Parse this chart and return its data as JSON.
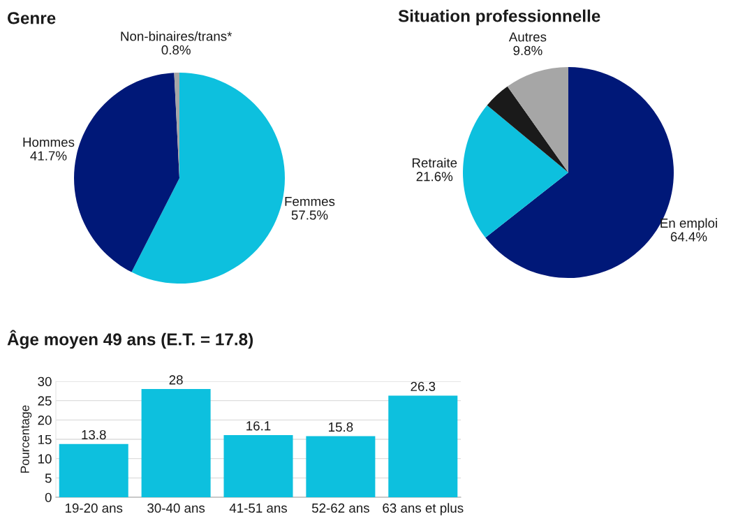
{
  "chart_data": [
    {
      "type": "pie",
      "title": "Genre",
      "categories": [
        "Femmes",
        "Hommes",
        "Non-binaires/trans*"
      ],
      "values": [
        57.5,
        41.7,
        0.8
      ],
      "colors": [
        "#0dc0de",
        "#001878",
        "#a6a6a6"
      ],
      "value_labels": [
        "57.5%",
        "41.7%",
        "0.8%"
      ]
    },
    {
      "type": "pie",
      "title": "Situation professionnelle",
      "categories": [
        "En emploi",
        "Retraite",
        null,
        "Autres"
      ],
      "values": [
        64.4,
        21.6,
        4.2,
        9.8
      ],
      "colors": [
        "#001878",
        "#0dc0de",
        "#1a1a1a",
        "#a6a6a6"
      ],
      "value_labels": [
        "64.4%",
        "21.6%",
        null,
        "9.8%"
      ]
    },
    {
      "type": "bar",
      "title": "Âge moyen 49 ans (E.T. = 17.8)",
      "ylabel": "Pourcentage",
      "categories": [
        "19-20 ans",
        "30-40 ans",
        "41-51 ans",
        "52-62 ans",
        "63 ans et plus"
      ],
      "values": [
        13.8,
        28,
        16.1,
        15.8,
        26.3
      ],
      "color": "#0dc0de",
      "ylim": [
        0,
        30
      ],
      "yticks": [
        0,
        5,
        10,
        15,
        20,
        25,
        30
      ],
      "grid": "y",
      "data_labels": true
    }
  ]
}
